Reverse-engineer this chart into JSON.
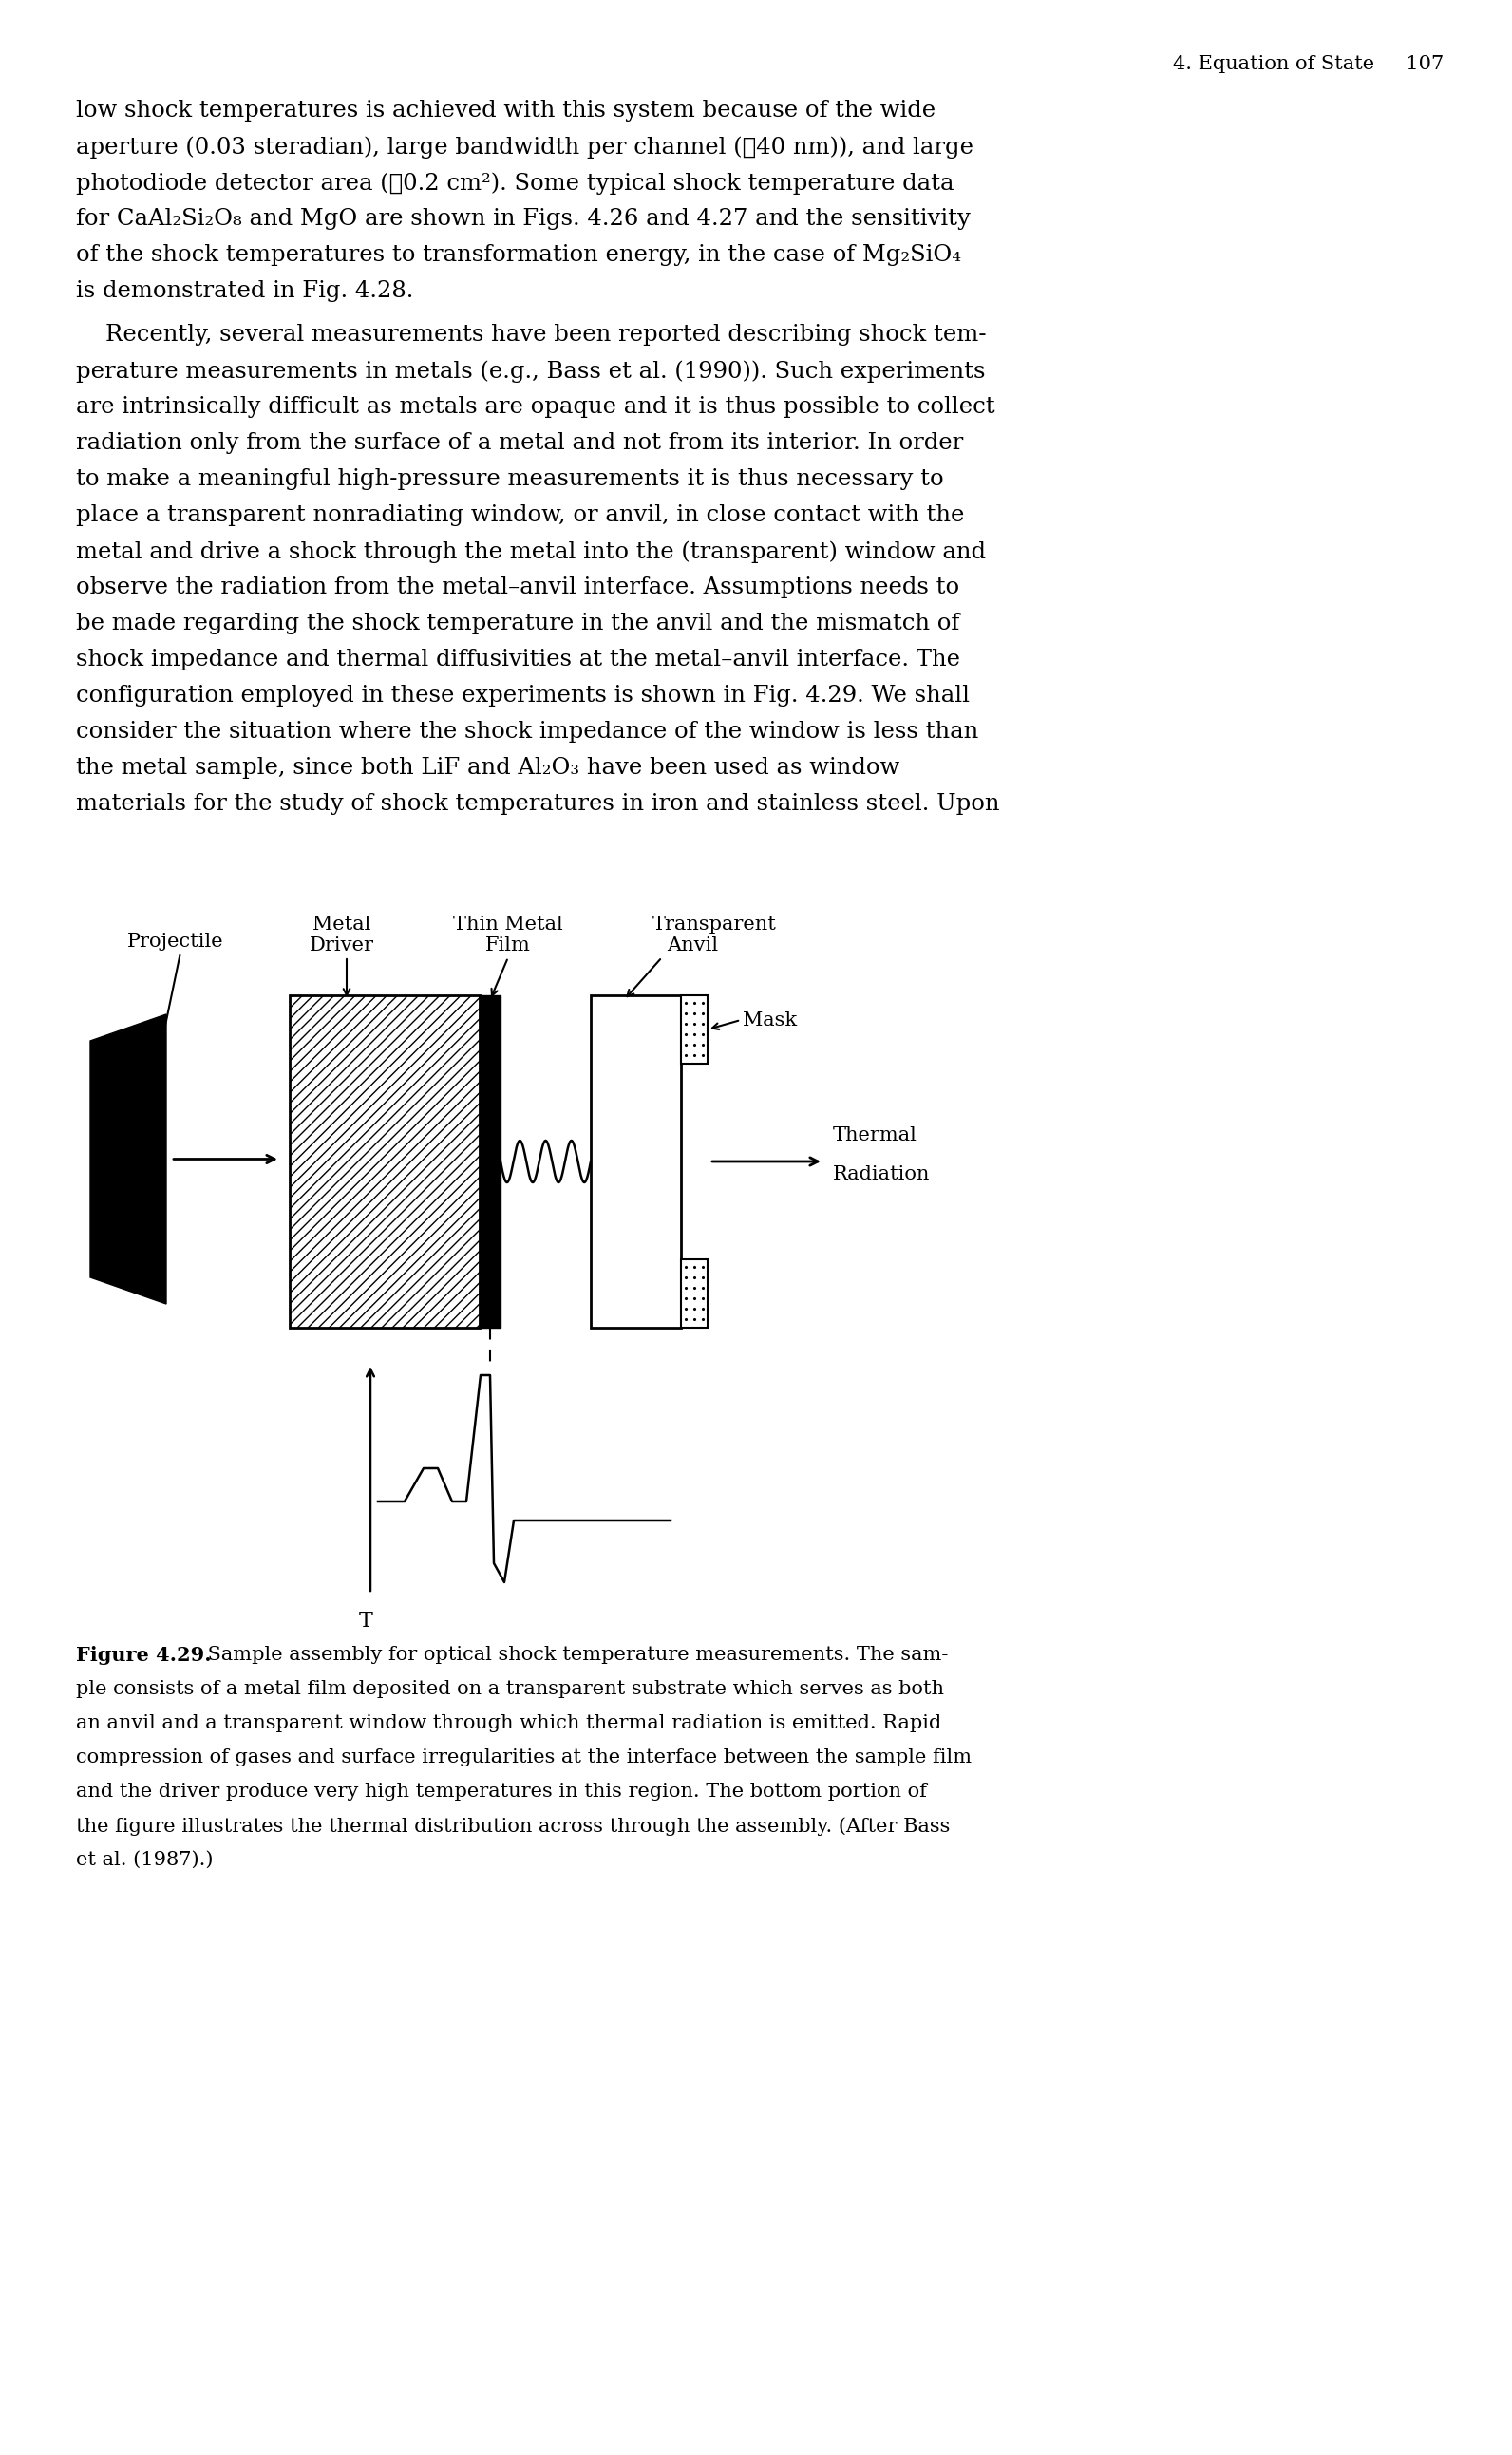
{
  "page_header": "4. Equation of State     107",
  "body1_lines": [
    "low shock temperatures is achieved with this system because of the wide",
    "aperture (0.03 steradian), large bandwidth per channel (∰40 nm)), and large",
    "photodiode detector area (∲0.2 cm²). Some typical shock temperature data",
    "for CaAl₂Si₂O₈ and MgO are shown in Figs. 4.26 and 4.27 and the sensitivity",
    "of the shock temperatures to transformation energy, in the case of Mg₂SiO₄",
    "is demonstrated in Fig. 4.28."
  ],
  "body2_lines": [
    "    Recently, several measurements have been reported describing shock tem-",
    "perature measurements in metals (e.g., Bass et al. (1990)). Such experiments",
    "are intrinsically difficult as metals are opaque and it is thus possible to collect",
    "radiation only from the surface of a metal and not from its interior. In order",
    "to make a meaningful high-pressure measurements it is thus necessary to",
    "place a transparent nonradiating window, or anvil, in close contact with the",
    "metal and drive a shock through the metal into the (transparent) window and",
    "observe the radiation from the metal–anvil interface. Assumptions needs to",
    "be made regarding the shock temperature in the anvil and the mismatch of",
    "shock impedance and thermal diffusivities at the metal–anvil interface. The",
    "configuration employed in these experiments is shown in Fig. 4.29. We shall",
    "consider the situation where the shock impedance of the window is less than",
    "the metal sample, since both LiF and Al₂O₃ have been used as window",
    "materials for the study of shock temperatures in iron and stainless steel. Upon"
  ],
  "caption_bold": "Figure 4.29.",
  "caption_rest_line1": " Sample assembly for optical shock temperature measurements. The sam-",
  "caption_lines": [
    "ple consists of a metal film deposited on a transparent substrate which serves as both",
    "an anvil and a transparent window through which thermal radiation is emitted. Rapid",
    "compression of gases and surface irregularities at the interface between the sample film",
    "and the driver produce very high temperatures in this region. The bottom portion of",
    "the figure illustrates the thermal distribution across through the assembly. (After Bass",
    "et al. (1987).)"
  ],
  "label_projectile": "Projectile",
  "label_metal_driver_1": "Metal",
  "label_metal_driver_2": "Driver",
  "label_thin_metal_1": "Thin Metal",
  "label_thin_metal_2": "Film",
  "label_transparent_1": "Transparent",
  "label_transparent_2": "Anvil",
  "label_mask": "Mask",
  "label_thermal_1": "Thermal",
  "label_thermal_2": "Radiation",
  "label_T": "T",
  "bg_color": "#ffffff",
  "text_color": "#000000",
  "text_fontsize": 17.5,
  "header_fontsize": 15,
  "label_fontsize": 15,
  "caption_fontsize": 15
}
